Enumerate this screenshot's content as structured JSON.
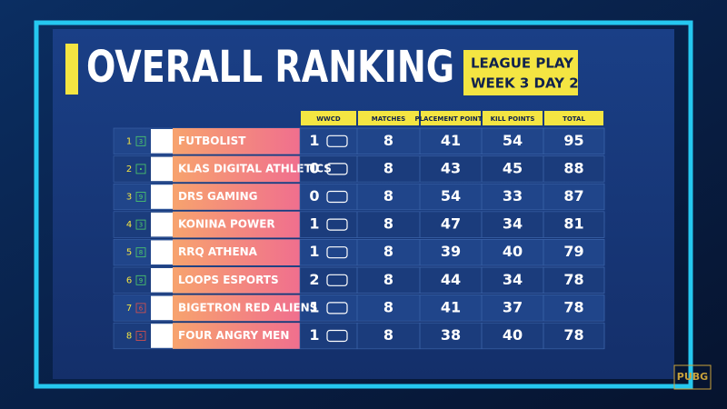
{
  "header": {
    "title": "OVERALL RANKING",
    "subtitle": [
      "LEAGUE PLAY",
      "WEEK 3 DAY 2"
    ]
  },
  "table": {
    "columns": [
      "WWCD",
      "MATCHES",
      "PLACEMENT POINTS",
      "KILL POINTS",
      "TOTAL"
    ],
    "rows": [
      {
        "rank": "1",
        "change": "3",
        "team": "FUTBOLIST",
        "cells": [
          "1",
          "8",
          "41",
          "54",
          "95"
        ]
      },
      {
        "rank": "2",
        "change": "•",
        "team": "KLAS DIGITAL ATHLETICS",
        "cells": [
          "0",
          "8",
          "43",
          "45",
          "88"
        ]
      },
      {
        "rank": "3",
        "change": "9",
        "team": "DRS GAMING",
        "cells": [
          "0",
          "8",
          "54",
          "33",
          "87"
        ]
      },
      {
        "rank": "4",
        "change": "3",
        "team": "KONINA POWER",
        "cells": [
          "1",
          "8",
          "47",
          "34",
          "81"
        ]
      },
      {
        "rank": "5",
        "change": "8",
        "team": "RRQ ATHENA",
        "cells": [
          "1",
          "8",
          "39",
          "40",
          "79"
        ]
      },
      {
        "rank": "6",
        "change": "9",
        "team": "LOOPS ESPORTS",
        "cells": [
          "2",
          "8",
          "44",
          "34",
          "78"
        ]
      },
      {
        "rank": "7",
        "change": "6",
        "team": "BIGETRON RED ALIENS",
        "cells": [
          "1",
          "8",
          "41",
          "37",
          "78"
        ]
      },
      {
        "rank": "8",
        "change": "5",
        "team": "FOUR ANGRY MEN",
        "cells": [
          "1",
          "8",
          "38",
          "40",
          "78"
        ]
      }
    ]
  },
  "brand": "PUBG"
}
